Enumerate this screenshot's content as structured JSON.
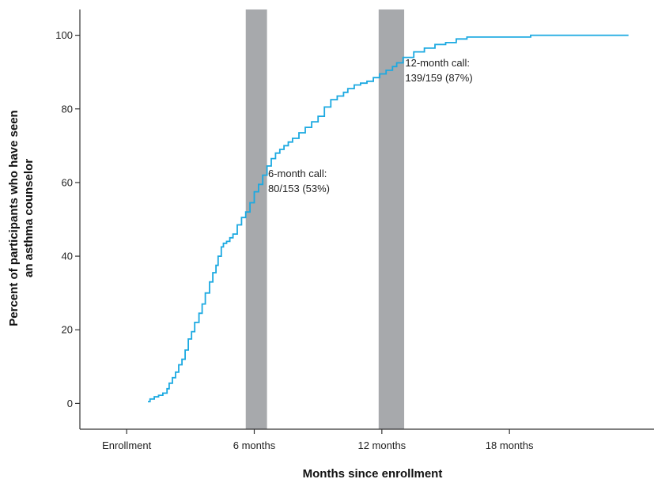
{
  "chart_data": {
    "type": "line",
    "title": "",
    "xlabel": "Months since enrollment",
    "ylabel_lines": [
      "Percent of participants who have seen",
      "an asthma counselor"
    ],
    "xlim": [
      -2.2,
      24.8
    ],
    "ylim": [
      -7,
      107
    ],
    "x_ticks": [
      {
        "value": 0,
        "label": "Enrollment"
      },
      {
        "value": 6,
        "label": "6 months"
      },
      {
        "value": 12,
        "label": "12 months"
      },
      {
        "value": 18,
        "label": "18 months"
      }
    ],
    "y_ticks": [
      {
        "value": 0,
        "label": "0"
      },
      {
        "value": 20,
        "label": "20"
      },
      {
        "value": 40,
        "label": "40"
      },
      {
        "value": 60,
        "label": "60"
      },
      {
        "value": 80,
        "label": "80"
      },
      {
        "value": 100,
        "label": "100"
      }
    ],
    "shaded_bands": [
      {
        "x_start": 5.6,
        "x_end": 6.6,
        "color": "#a7a9ac"
      },
      {
        "x_start": 11.85,
        "x_end": 13.05,
        "color": "#a7a9ac"
      }
    ],
    "series": [
      {
        "color": "#1ba9e1",
        "x": [
          1,
          1.1,
          1.3,
          1.5,
          1.7,
          1.9,
          2.0,
          2.15,
          2.3,
          2.45,
          2.6,
          2.75,
          2.9,
          3.05,
          3.2,
          3.4,
          3.55,
          3.7,
          3.9,
          4.05,
          4.2,
          4.3,
          4.45,
          4.55,
          4.7,
          4.85,
          5.0,
          5.2,
          5.4,
          5.6,
          5.8,
          6.0,
          6.2,
          6.4,
          6.6,
          6.8,
          7.0,
          7.2,
          7.4,
          7.6,
          7.8,
          8.1,
          8.4,
          8.7,
          9.0,
          9.3,
          9.6,
          9.9,
          10.2,
          10.4,
          10.7,
          11.0,
          11.3,
          11.6,
          11.9,
          12.2,
          12.5,
          12.7,
          13.0,
          13.5,
          14.0,
          14.5,
          15.0,
          15.5,
          16.0,
          16.5,
          17.0,
          18.0,
          19.0,
          20.0,
          21.0,
          22.0,
          23.0,
          23.6
        ],
        "y": [
          0.5,
          1.2,
          1.8,
          2.2,
          2.8,
          4.0,
          5.5,
          7.0,
          8.5,
          10.5,
          12.0,
          14.5,
          17.5,
          19.5,
          22.0,
          24.5,
          27.0,
          30.0,
          33.0,
          35.5,
          37.5,
          40.0,
          42.5,
          43.5,
          44.0,
          45.0,
          46.0,
          48.5,
          50.5,
          52.0,
          54.5,
          57.5,
          59.5,
          62.0,
          64.5,
          66.5,
          68.0,
          69.0,
          70.0,
          71.0,
          72.0,
          73.5,
          75.0,
          76.5,
          78.0,
          80.5,
          82.5,
          83.5,
          84.5,
          85.5,
          86.5,
          87.0,
          87.5,
          88.5,
          89.5,
          90.5,
          91.5,
          92.5,
          94.0,
          95.5,
          96.5,
          97.5,
          98.0,
          99.0,
          99.5,
          99.5,
          99.5,
          99.5,
          100,
          100,
          100,
          100,
          100,
          100
        ]
      }
    ],
    "annotations": [
      {
        "lines": [
          "6-month call:",
          "80/153 (53%)"
        ],
        "x": 6.65,
        "y": 61.5
      },
      {
        "lines": [
          "12-month call:",
          "139/159 (87%)"
        ],
        "x": 13.1,
        "y": 91.5
      }
    ]
  }
}
